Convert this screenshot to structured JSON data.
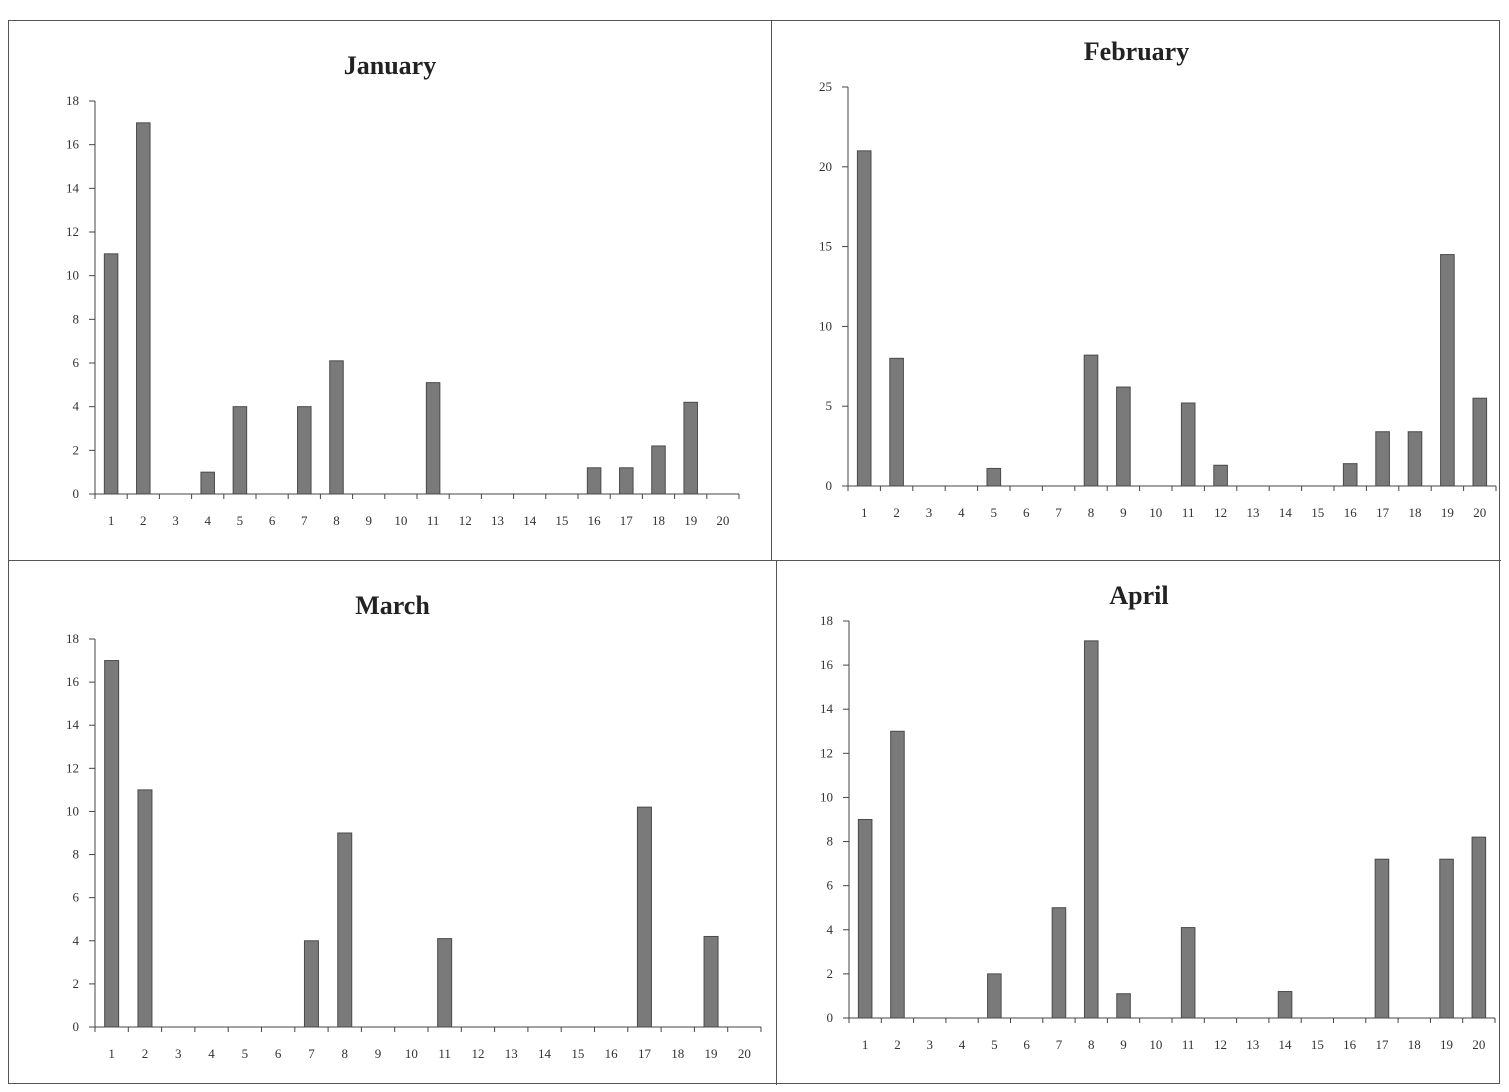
{
  "chart_data": [
    {
      "type": "bar",
      "title": "January",
      "categories": [
        "1",
        "2",
        "3",
        "4",
        "5",
        "6",
        "7",
        "8",
        "9",
        "10",
        "11",
        "12",
        "13",
        "14",
        "15",
        "16",
        "17",
        "18",
        "19",
        "20"
      ],
      "values": [
        11,
        17,
        0,
        1,
        4,
        0,
        4,
        6.1,
        0,
        0,
        5.1,
        0,
        0,
        0,
        0,
        1.2,
        1.2,
        2.2,
        4.2,
        0
      ],
      "ylim": [
        0,
        18
      ],
      "yticks": [
        0,
        2,
        4,
        6,
        8,
        10,
        12,
        14,
        16,
        18
      ],
      "grid": false,
      "bar_color": "#7a7a7a"
    },
    {
      "type": "bar",
      "title": "February",
      "categories": [
        "1",
        "2",
        "3",
        "4",
        "5",
        "6",
        "7",
        "8",
        "9",
        "10",
        "11",
        "12",
        "13",
        "14",
        "15",
        "16",
        "17",
        "18",
        "19",
        "20"
      ],
      "values": [
        21,
        8,
        0,
        0,
        1.1,
        0,
        0,
        8.2,
        6.2,
        0,
        5.2,
        1.3,
        0,
        0,
        0,
        1.4,
        3.4,
        3.4,
        14.5,
        5.5
      ],
      "ylim": [
        0,
        25
      ],
      "yticks": [
        0,
        5,
        10,
        15,
        20,
        25
      ],
      "grid": false,
      "bar_color": "#7a7a7a"
    },
    {
      "type": "bar",
      "title": "March",
      "categories": [
        "1",
        "2",
        "3",
        "4",
        "5",
        "6",
        "7",
        "8",
        "9",
        "10",
        "11",
        "12",
        "13",
        "14",
        "15",
        "16",
        "17",
        "18",
        "19",
        "20"
      ],
      "values": [
        17,
        11,
        0,
        0,
        0,
        0,
        4,
        9,
        0,
        0,
        4.1,
        0,
        0,
        0,
        0,
        0,
        10.2,
        0,
        4.2,
        0
      ],
      "ylim": [
        0,
        18
      ],
      "yticks": [
        0,
        2,
        4,
        6,
        8,
        10,
        12,
        14,
        16,
        18
      ],
      "grid": false,
      "bar_color": "#7a7a7a"
    },
    {
      "type": "bar",
      "title": "April",
      "categories": [
        "1",
        "2",
        "3",
        "4",
        "5",
        "6",
        "7",
        "8",
        "9",
        "10",
        "11",
        "12",
        "13",
        "14",
        "15",
        "16",
        "17",
        "18",
        "19",
        "20"
      ],
      "values": [
        9,
        13,
        0,
        0,
        2,
        0,
        5,
        17.1,
        1.1,
        0,
        4.1,
        0,
        0,
        1.2,
        0,
        0,
        7.2,
        0,
        7.2,
        8.2
      ],
      "ylim": [
        0,
        18
      ],
      "yticks": [
        0,
        2,
        4,
        6,
        8,
        10,
        12,
        14,
        16,
        18
      ],
      "grid": false,
      "bar_color": "#7a7a7a"
    }
  ]
}
